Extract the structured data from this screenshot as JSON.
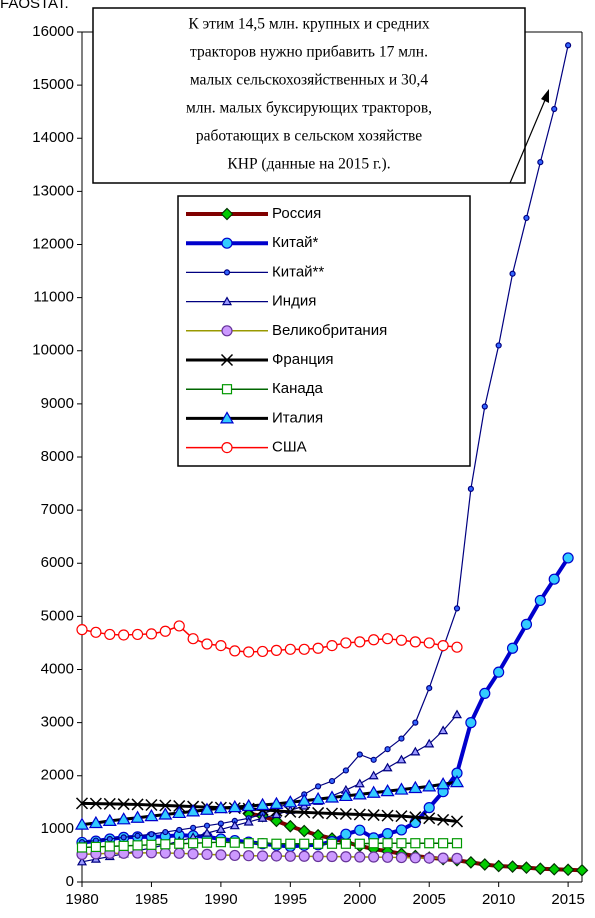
{
  "chart_data": {
    "type": "line",
    "note": "FAOSTAT.",
    "annotation": [
      "К этим 14,5 млн. крупных и средних",
      "тракторов нужно прибавить 17 млн.",
      "малых сельскохозяйственных и 30,4",
      "млн. малых буксирующих тракторов,",
      "работающих в сельском хозяйстве",
      "КНР (данные на 2015 г.)."
    ],
    "x": [
      1980,
      1981,
      1982,
      1983,
      1984,
      1985,
      1986,
      1987,
      1988,
      1989,
      1990,
      1991,
      1992,
      1993,
      1994,
      1995,
      1996,
      1997,
      1998,
      1999,
      2000,
      2001,
      2002,
      2003,
      2004,
      2005,
      2006,
      2007,
      2008,
      2009,
      2010,
      2011,
      2012,
      2013,
      2014,
      2015,
      2016
    ],
    "xlim": [
      1980,
      2016
    ],
    "xticks": [
      1980,
      1985,
      1990,
      1995,
      2000,
      2005,
      2010,
      2015
    ],
    "ylim": [
      0,
      16000
    ],
    "yticks": [
      0,
      1000,
      2000,
      3000,
      4000,
      5000,
      6000,
      7000,
      8000,
      9000,
      10000,
      11000,
      12000,
      13000,
      14000,
      15000,
      16000
    ],
    "series": [
      {
        "name": "Россия",
        "color": "#800000",
        "marker": "diamond",
        "marker_color": "#00cc00",
        "marker_fill": "#00cc00",
        "line_width": 4,
        "values": [
          null,
          null,
          null,
          null,
          null,
          null,
          null,
          null,
          null,
          null,
          null,
          null,
          1290,
          1240,
          1150,
          1050,
          960,
          880,
          820,
          750,
          680,
          620,
          580,
          530,
          490,
          460,
          430,
          410,
          370,
          330,
          300,
          290,
          270,
          250,
          240,
          230,
          220
        ]
      },
      {
        "name": "Китай*",
        "color": "#0000cc",
        "marker": "circle",
        "marker_color": "#0000cc",
        "marker_fill": "#33ccff",
        "line_width": 4,
        "values": [
          745,
          770,
          810,
          840,
          850,
          850,
          860,
          880,
          870,
          850,
          810,
          780,
          750,
          720,
          690,
          670,
          690,
          700,
          760,
          900,
          975,
          830,
          910,
          980,
          1120,
          1400,
          1700,
          2050,
          3000,
          3550,
          3950,
          4400,
          4850,
          5300,
          5700,
          6100,
          null
        ]
      },
      {
        "name": "Китай**",
        "color": "#000080",
        "marker": "dot",
        "marker_color": "#000080",
        "marker_fill": "#3366ff",
        "line_width": 1.2,
        "values": [
          750,
          780,
          810,
          840,
          870,
          900,
          940,
          980,
          1020,
          1060,
          1100,
          1150,
          1200,
          1280,
          1380,
          1500,
          1650,
          1800,
          1900,
          2100,
          2400,
          2300,
          2500,
          2700,
          3000,
          3650,
          4400,
          5150,
          7400,
          8950,
          10100,
          11450,
          12500,
          13550,
          14550,
          15750,
          null
        ]
      },
      {
        "name": "Индия",
        "color": "#000080",
        "marker": "triangle",
        "marker_color": "#000080",
        "marker_fill": "#9999ff",
        "line_width": 1.2,
        "values": [
          380,
          430,
          480,
          530,
          590,
          640,
          700,
          770,
          840,
          920,
          990,
          1060,
          1130,
          1200,
          1270,
          1350,
          1430,
          1520,
          1620,
          1730,
          1850,
          2000,
          2150,
          2300,
          2450,
          2600,
          2850,
          3150,
          null,
          null,
          null,
          null,
          null,
          null,
          null,
          null,
          null
        ]
      },
      {
        "name": "Великобритания",
        "color": "#999900",
        "marker": "circle",
        "marker_color": "#663399",
        "marker_fill": "#cc99ff",
        "line_width": 1.5,
        "values": [
          520,
          530,
          540,
          540,
          545,
          550,
          545,
          540,
          530,
          520,
          510,
          500,
          495,
          490,
          490,
          485,
          485,
          480,
          480,
          475,
          470,
          470,
          465,
          460,
          455,
          450,
          450,
          445,
          null,
          null,
          null,
          null,
          null,
          null,
          null,
          null,
          null
        ]
      },
      {
        "name": "Франция",
        "color": "#000000",
        "marker": "x",
        "marker_color": "#000000",
        "marker_fill": "none",
        "line_width": 3,
        "values": [
          1480,
          1475,
          1470,
          1465,
          1460,
          1450,
          1440,
          1430,
          1420,
          1410,
          1400,
          1390,
          1380,
          1360,
          1340,
          1320,
          1310,
          1300,
          1290,
          1280,
          1270,
          1260,
          1250,
          1240,
          1220,
          1200,
          1170,
          1140,
          null,
          null,
          null,
          null,
          null,
          null,
          null,
          null,
          null
        ]
      },
      {
        "name": "Канада",
        "color": "#006600",
        "marker": "square",
        "marker_color": "#009900",
        "marker_fill": "#ffffff",
        "line_width": 1.5,
        "values": [
          650,
          660,
          670,
          680,
          690,
          700,
          710,
          720,
          730,
          740,
          750,
          740,
          730,
          730,
          720,
          720,
          720,
          720,
          720,
          720,
          720,
          730,
          730,
          730,
          730,
          730,
          730,
          730,
          null,
          null,
          null,
          null,
          null,
          null,
          null,
          null,
          null
        ]
      },
      {
        "name": "Италия",
        "color": "#000000",
        "marker": "triangle",
        "marker_color": "#0000cc",
        "marker_fill": "#33ccff",
        "line_width": 3,
        "values": [
          1080,
          1110,
          1150,
          1180,
          1210,
          1240,
          1270,
          1300,
          1330,
          1360,
          1390,
          1410,
          1430,
          1450,
          1470,
          1500,
          1530,
          1560,
          1590,
          1620,
          1650,
          1680,
          1710,
          1740,
          1770,
          1800,
          1840,
          1880,
          null,
          null,
          null,
          null,
          null,
          null,
          null,
          null,
          null
        ]
      },
      {
        "name": "США",
        "color": "#ff0000",
        "marker": "circle",
        "marker_color": "#ff0000",
        "marker_fill": "#ffffff",
        "line_width": 1.5,
        "values": [
          4750,
          4700,
          4660,
          4650,
          4660,
          4670,
          4720,
          4820,
          4580,
          4480,
          4450,
          4350,
          4330,
          4340,
          4360,
          4380,
          4380,
          4400,
          4450,
          4500,
          4520,
          4560,
          4580,
          4550,
          4520,
          4500,
          4450,
          4420,
          null,
          null,
          null,
          null,
          null,
          null,
          null,
          null,
          null
        ]
      }
    ]
  }
}
